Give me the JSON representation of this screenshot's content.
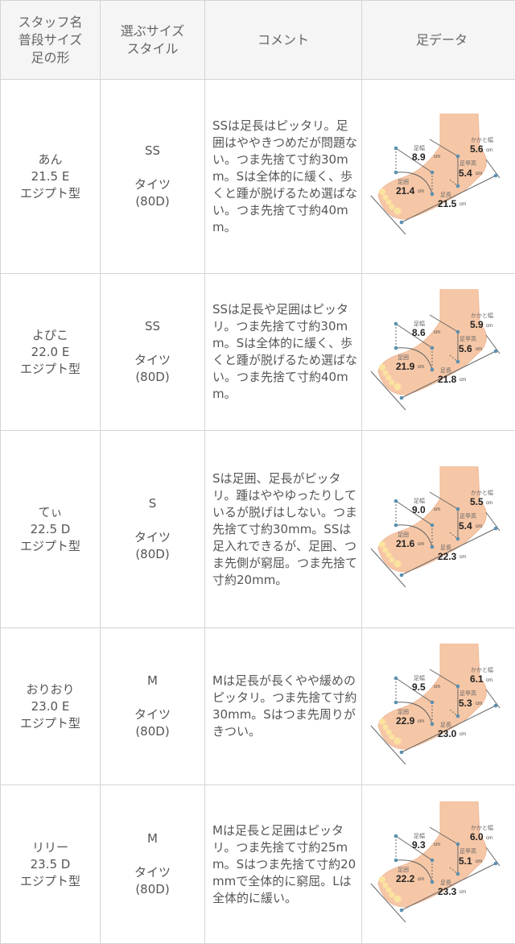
{
  "header": {
    "col1": [
      "スタッフ名",
      "普段サイズ",
      "足の形"
    ],
    "col2": [
      "選ぶサイズ",
      "スタイル"
    ],
    "col3": "コメント",
    "col4": "足データ"
  },
  "foot_labels": {
    "width": "足幅",
    "heel": "かかと幅",
    "instep": "足甲高",
    "girth": "足囲",
    "length": "足長",
    "unit": "cm"
  },
  "rows": [
    {
      "name": "あん",
      "size": "21.5 E",
      "shape": "エジプト型",
      "pick": "SS",
      "style": "タイツ",
      "denier": "(80D)",
      "comment": "SSは足長はピッタリ。足囲はややきつめだが問題ない。つま先捨て寸約30mm。Sは全体的に緩く、歩くと踵が脱げるため選ばない。つま先捨て寸約40mm。",
      "foot": {
        "width": "8.9",
        "heel": "5.6",
        "instep": "5.4",
        "girth": "21.4",
        "length": "21.5"
      }
    },
    {
      "name": "よぴこ",
      "size": "22.0 E",
      "shape": "エジプト型",
      "pick": "SS",
      "style": "タイツ",
      "denier": "(80D)",
      "comment": "SSは足長や足囲はピッタリ。つま先捨て寸約30mm。Sは全体的に緩く、歩くと踵が脱げるため選ばない。つま先捨て寸約40mm。",
      "foot": {
        "width": "8.6",
        "heel": "5.9",
        "instep": "5.6",
        "girth": "21.9",
        "length": "21.8"
      }
    },
    {
      "name": "てぃ",
      "size": "22.5 D",
      "shape": "エジプト型",
      "pick": "S",
      "style": "タイツ",
      "denier": "(80D)",
      "comment": "Sは足囲、足長がピッタリ。踵はややゆったりしているが脱げはしない。つま先捨て寸約30mm。SSは足入れできるが、足囲、つま先側が窮屈。つま先捨て寸約20mm。",
      "foot": {
        "width": "9.0",
        "heel": "5.5",
        "instep": "5.4",
        "girth": "21.6",
        "length": "22.3"
      }
    },
    {
      "name": "おりおり",
      "size": "23.0 E",
      "shape": "エジプト型",
      "pick": "M",
      "style": "タイツ",
      "denier": "(80D)",
      "comment": "Mは足長が長くやや緩めのピッタリ。つま先捨て寸約30mm。Sはつま先周りがきつい。",
      "foot": {
        "width": "9.5",
        "heel": "6.1",
        "instep": "5.3",
        "girth": "22.9",
        "length": "23.0"
      }
    },
    {
      "name": "リリー",
      "size": "23.5 D",
      "shape": "エジプト型",
      "pick": "M",
      "style": "タイツ",
      "denier": "(80D)",
      "comment": "Mは足長と足囲はピッタリ。つま先捨て寸約25mm。Sはつま先捨て寸約20mmで全体的に窮屈。Lは全体的に緩い。",
      "foot": {
        "width": "9.3",
        "heel": "6.0",
        "instep": "5.1",
        "girth": "22.2",
        "length": "23.3"
      }
    }
  ]
}
